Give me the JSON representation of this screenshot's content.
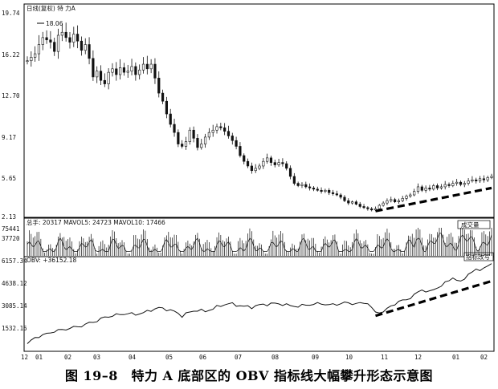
{
  "caption": "图 19–8　特力 A 底部区的 OBV 指标线大幅攀升形态示意图",
  "chart_data": [
    {
      "type": "candlestick",
      "header": "日线(复权)   特  力A",
      "ylim": [
        2.13,
        19.74
      ],
      "yticks": [
        "19.74",
        "16.22",
        "12.70",
        "9.17",
        "5.65",
        "2.13"
      ],
      "peak_label": "18.06",
      "points": [
        [
          0,
          15.6
        ],
        [
          2,
          16.2
        ],
        [
          3,
          17.0
        ],
        [
          4,
          17.6
        ],
        [
          6,
          17.2
        ],
        [
          7,
          16.4
        ],
        [
          8,
          17.8
        ],
        [
          9,
          18.06
        ],
        [
          10,
          17.6
        ],
        [
          11,
          17.2
        ],
        [
          12,
          17.9
        ],
        [
          13,
          17.3
        ],
        [
          14,
          16.5
        ],
        [
          15,
          17.0
        ],
        [
          16,
          15.8
        ],
        [
          17,
          14.2
        ],
        [
          18,
          14.7
        ],
        [
          19,
          13.9
        ],
        [
          20,
          13.6
        ],
        [
          21,
          14.6
        ],
        [
          22,
          14.9
        ],
        [
          23,
          14.4
        ],
        [
          24,
          15.0
        ],
        [
          25,
          14.6
        ],
        [
          26,
          14.7
        ],
        [
          27,
          15.1
        ],
        [
          28,
          14.4
        ],
        [
          29,
          14.8
        ],
        [
          30,
          15.3
        ],
        [
          31,
          14.9
        ],
        [
          32,
          15.3
        ],
        [
          33,
          14.1
        ],
        [
          34,
          12.8
        ],
        [
          35,
          12.1
        ],
        [
          36,
          11.0
        ],
        [
          37,
          10.1
        ],
        [
          38,
          9.4
        ],
        [
          39,
          8.4
        ],
        [
          40,
          8.2
        ],
        [
          41,
          8.6
        ],
        [
          42,
          9.6
        ],
        [
          43,
          8.9
        ],
        [
          44,
          8.1
        ],
        [
          45,
          8.4
        ],
        [
          46,
          9.0
        ],
        [
          47,
          9.4
        ],
        [
          48,
          9.6
        ],
        [
          49,
          9.9
        ],
        [
          50,
          9.8
        ],
        [
          51,
          9.5
        ],
        [
          52,
          9.1
        ],
        [
          53,
          8.7
        ],
        [
          54,
          8.2
        ],
        [
          55,
          7.4
        ],
        [
          56,
          6.9
        ],
        [
          57,
          6.5
        ],
        [
          58,
          6.1
        ],
        [
          59,
          6.3
        ],
        [
          60,
          6.5
        ],
        [
          61,
          6.9
        ],
        [
          62,
          7.2
        ],
        [
          63,
          6.8
        ],
        [
          64,
          6.6
        ],
        [
          65,
          6.8
        ],
        [
          66,
          6.7
        ],
        [
          67,
          6.3
        ],
        [
          68,
          5.6
        ],
        [
          69,
          5.0
        ],
        [
          70,
          4.8
        ],
        [
          71,
          4.9
        ],
        [
          72,
          4.7
        ],
        [
          73,
          4.6
        ],
        [
          74,
          4.5
        ],
        [
          75,
          4.4
        ],
        [
          76,
          4.3
        ],
        [
          77,
          4.4
        ],
        [
          78,
          4.2
        ],
        [
          79,
          4.1
        ],
        [
          80,
          4.0
        ],
        [
          81,
          3.8
        ],
        [
          82,
          3.5
        ],
        [
          83,
          3.3
        ],
        [
          84,
          3.4
        ],
        [
          85,
          3.2
        ],
        [
          86,
          3.0
        ],
        [
          87,
          2.9
        ],
        [
          88,
          2.8
        ],
        [
          89,
          2.7
        ],
        [
          90,
          2.8
        ],
        [
          91,
          3.1
        ],
        [
          92,
          3.3
        ],
        [
          93,
          3.5
        ],
        [
          94,
          3.6
        ],
        [
          95,
          3.4
        ],
        [
          96,
          3.5
        ],
        [
          97,
          3.7
        ],
        [
          98,
          3.9
        ],
        [
          99,
          4.0
        ],
        [
          100,
          4.3
        ],
        [
          101,
          4.7
        ],
        [
          102,
          4.4
        ],
        [
          103,
          4.6
        ],
        [
          104,
          4.5
        ],
        [
          105,
          4.8
        ],
        [
          106,
          4.6
        ],
        [
          107,
          4.7
        ],
        [
          108,
          4.9
        ],
        [
          109,
          4.8
        ],
        [
          110,
          5.0
        ],
        [
          111,
          5.1
        ],
        [
          112,
          4.9
        ],
        [
          113,
          5.0
        ],
        [
          114,
          5.2
        ],
        [
          115,
          5.3
        ],
        [
          116,
          5.2
        ],
        [
          117,
          5.4
        ],
        [
          118,
          5.3
        ],
        [
          119,
          5.5
        ],
        [
          120,
          5.6
        ]
      ],
      "trendline": {
        "from": [
          90,
          2.6
        ],
        "to": [
          120,
          4.6
        ]
      }
    },
    {
      "type": "bar",
      "header": "总手: 20317   MAVOL5: 24723   MAVOL10: 17466",
      "ylim": [
        0,
        75441
      ],
      "yticks": [
        "75441",
        "37720"
      ],
      "tag": "成交量"
    },
    {
      "type": "line",
      "header": "OBV: +36152.18",
      "ylim": [
        0,
        6157.34
      ],
      "yticks": [
        "6157.34",
        "4638.12",
        "3085.14",
        "1532.15"
      ],
      "tag": "指标改写",
      "x_tick_labels": [
        "12",
        "01",
        "02",
        "03",
        "04",
        "05",
        "06",
        "07",
        "08",
        "09",
        "10",
        "11",
        "12",
        "01",
        "02"
      ],
      "points": [
        [
          0,
          450
        ],
        [
          2,
          900
        ],
        [
          4,
          1050
        ],
        [
          6,
          1250
        ],
        [
          8,
          1380
        ],
        [
          10,
          1480
        ],
        [
          12,
          1600
        ],
        [
          14,
          1700
        ],
        [
          16,
          1900
        ],
        [
          18,
          2050
        ],
        [
          20,
          2300
        ],
        [
          22,
          2400
        ],
        [
          24,
          2500
        ],
        [
          26,
          2550
        ],
        [
          28,
          2500
        ],
        [
          30,
          2600
        ],
        [
          32,
          2800
        ],
        [
          34,
          2950
        ],
        [
          36,
          2850
        ],
        [
          38,
          2700
        ],
        [
          40,
          2400
        ],
        [
          42,
          2650
        ],
        [
          44,
          2800
        ],
        [
          46,
          2700
        ],
        [
          48,
          2900
        ],
        [
          50,
          3100
        ],
        [
          52,
          3250
        ],
        [
          54,
          3150
        ],
        [
          56,
          3050
        ],
        [
          58,
          3000
        ],
        [
          60,
          3150
        ],
        [
          62,
          3200
        ],
        [
          64,
          3250
        ],
        [
          66,
          3200
        ],
        [
          68,
          3100
        ],
        [
          70,
          3050
        ],
        [
          72,
          3150
        ],
        [
          74,
          3200
        ],
        [
          76,
          3250
        ],
        [
          78,
          3150
        ],
        [
          80,
          3200
        ],
        [
          82,
          3300
        ],
        [
          84,
          3250
        ],
        [
          86,
          3250
        ],
        [
          88,
          3300
        ],
        [
          90,
          2600
        ],
        [
          92,
          2700
        ],
        [
          94,
          3050
        ],
        [
          96,
          3400
        ],
        [
          98,
          3500
        ],
        [
          100,
          3850
        ],
        [
          102,
          4200
        ],
        [
          104,
          4050
        ],
        [
          106,
          4350
        ],
        [
          108,
          4650
        ],
        [
          110,
          5050
        ],
        [
          112,
          4700
        ],
        [
          114,
          5300
        ],
        [
          116,
          5550
        ],
        [
          118,
          5700
        ],
        [
          120,
          5950
        ]
      ],
      "trendline": {
        "from": [
          90,
          2400
        ],
        "to": [
          120,
          4800
        ]
      }
    }
  ]
}
